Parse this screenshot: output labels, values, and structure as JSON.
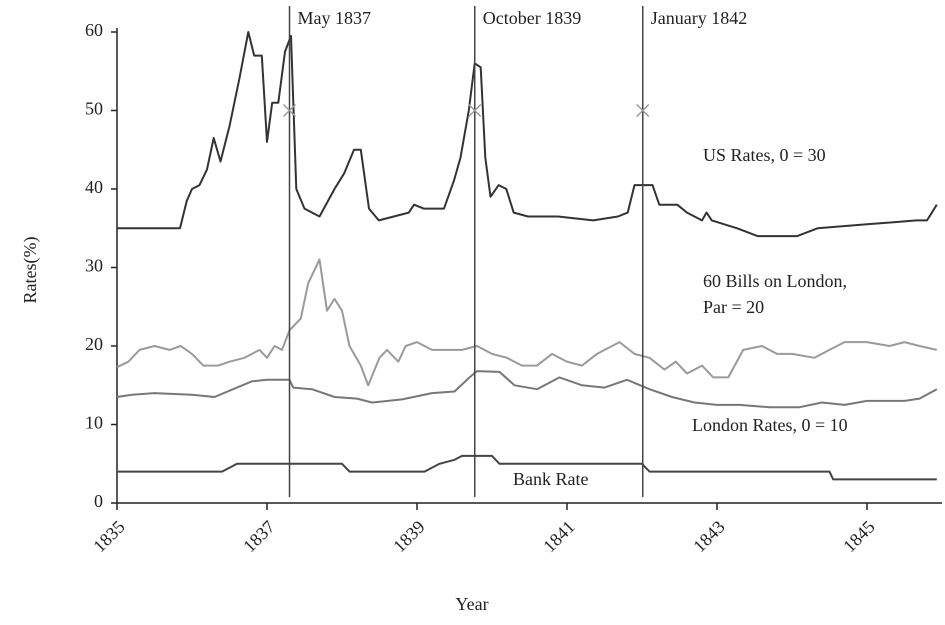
{
  "chart_data": {
    "type": "line",
    "xlabel": "Year",
    "ylabel": "Rates(%)",
    "xlim": [
      1835,
      1846
    ],
    "ylim": [
      0,
      60
    ],
    "xticks": [
      1835,
      1837,
      1839,
      1841,
      1843,
      1845
    ],
    "yticks": [
      0,
      10,
      20,
      30,
      40,
      50,
      60
    ],
    "grid": false,
    "events": [
      {
        "x": 1837.3,
        "label": "May 1837",
        "marker": 50
      },
      {
        "x": 1839.77,
        "label": "October 1839",
        "marker": 50
      },
      {
        "x": 1842.01,
        "label": "January 1842",
        "marker": 50
      }
    ],
    "series": [
      {
        "name": "US Rates, 0 = 30",
        "color": "#333333",
        "x": [
          1835,
          1835.84,
          1835.93,
          1836.0,
          1836.1,
          1836.2,
          1836.29,
          1836.38,
          1836.5,
          1836.63,
          1836.75,
          1836.83,
          1836.93,
          1837.0,
          1837.07,
          1837.15,
          1837.24,
          1837.32,
          1837.39,
          1837.5,
          1837.7,
          1837.9,
          1838.03,
          1838.16,
          1838.25,
          1838.36,
          1838.49,
          1838.69,
          1838.89,
          1838.96,
          1839.09,
          1839.36,
          1839.49,
          1839.58,
          1839.69,
          1839.77,
          1839.85,
          1839.91,
          1839.98,
          1840.09,
          1840.19,
          1840.29,
          1840.48,
          1840.88,
          1841.35,
          1841.68,
          1841.81,
          1841.9,
          1842.14,
          1842.23,
          1842.47,
          1842.6,
          1842.8,
          1842.86,
          1842.93,
          1843.27,
          1843.54,
          1844.07,
          1844.34,
          1845.0,
          1845.66,
          1845.8,
          1845.93
        ],
        "values": [
          35,
          35,
          38.5,
          40,
          40.5,
          42.5,
          46.5,
          43.5,
          48,
          54,
          60,
          57,
          57,
          46,
          51,
          51,
          57.5,
          59.5,
          40,
          37.5,
          36.5,
          40,
          42,
          45,
          45,
          37.5,
          36,
          36.5,
          37,
          38,
          37.5,
          37.5,
          41,
          44,
          50,
          56,
          55.5,
          44,
          39,
          40.5,
          40,
          37,
          36.5,
          36.5,
          36,
          36.5,
          37,
          40.5,
          40.5,
          38,
          38,
          37,
          36,
          37,
          36,
          35,
          34,
          34,
          35,
          35.5,
          36,
          36,
          38
        ]
      },
      {
        "name": "60 Bills on London, Par = 20",
        "color": "#9a9a9a",
        "x": [
          1835,
          1835.15,
          1835.3,
          1835.5,
          1835.7,
          1835.85,
          1836.0,
          1836.15,
          1836.35,
          1836.5,
          1836.7,
          1836.9,
          1837.0,
          1837.1,
          1837.2,
          1837.3,
          1837.45,
          1837.55,
          1837.7,
          1837.8,
          1837.9,
          1838.0,
          1838.1,
          1838.25,
          1838.35,
          1838.5,
          1838.6,
          1838.75,
          1838.85,
          1839.0,
          1839.2,
          1839.4,
          1839.6,
          1839.8,
          1840.0,
          1840.2,
          1840.4,
          1840.6,
          1840.8,
          1841.0,
          1841.2,
          1841.4,
          1841.7,
          1841.9,
          1842.1,
          1842.3,
          1842.45,
          1842.6,
          1842.8,
          1842.95,
          1843.15,
          1843.35,
          1843.6,
          1843.8,
          1844.0,
          1844.3,
          1844.5,
          1844.7,
          1845.0,
          1845.3,
          1845.5,
          1845.7,
          1845.93
        ],
        "values": [
          17.3,
          18,
          19.5,
          20,
          19.5,
          20,
          19,
          17.5,
          17.5,
          18,
          18.5,
          19.5,
          18.5,
          20,
          19.5,
          22,
          23.5,
          28,
          31,
          24.5,
          26,
          24.5,
          20,
          17.5,
          15,
          18.5,
          19.5,
          18,
          20,
          20.5,
          19.5,
          19.5,
          19.5,
          20,
          19,
          18.5,
          17.5,
          17.5,
          19,
          18,
          17.5,
          19,
          20.5,
          19,
          18.5,
          17,
          18,
          16.5,
          17.5,
          16,
          16,
          19.5,
          20,
          19,
          19,
          18.5,
          19.5,
          20.5,
          20.5,
          20,
          20.5,
          20,
          19.5
        ]
      },
      {
        "name": "London Rates, 0 = 10",
        "color": "#777777",
        "x": [
          1835,
          1835.2,
          1835.5,
          1836.0,
          1836.3,
          1836.5,
          1836.8,
          1837.0,
          1837.3,
          1837.35,
          1837.6,
          1837.9,
          1838.2,
          1838.4,
          1838.8,
          1839.2,
          1839.5,
          1839.7,
          1839.8,
          1840.1,
          1840.3,
          1840.6,
          1840.9,
          1841.2,
          1841.5,
          1841.8,
          1842.1,
          1842.4,
          1842.7,
          1843.0,
          1843.3,
          1843.7,
          1844.1,
          1844.4,
          1844.7,
          1845.0,
          1845.5,
          1845.7,
          1845.93
        ],
        "values": [
          13.5,
          13.8,
          14,
          13.8,
          13.5,
          14.3,
          15.5,
          15.7,
          15.7,
          14.7,
          14.5,
          13.5,
          13.3,
          12.8,
          13.2,
          14,
          14.2,
          16,
          16.8,
          16.7,
          15,
          14.5,
          16,
          15,
          14.7,
          15.7,
          14.5,
          13.5,
          12.8,
          12.5,
          12.5,
          12.2,
          12.2,
          12.8,
          12.5,
          13,
          13,
          13.3,
          14.5
        ]
      },
      {
        "name": "Bank Rate",
        "color": "#444444",
        "x": [
          1835,
          1836.4,
          1836.5,
          1836.6,
          1838.0,
          1838.1,
          1839.1,
          1839.3,
          1839.5,
          1839.6,
          1840.0,
          1840.1,
          1842.0,
          1842.1,
          1844.5,
          1844.55,
          1845.93
        ],
        "values": [
          4,
          4,
          4.5,
          5,
          5,
          4,
          4,
          5,
          5.5,
          6,
          6,
          5,
          5,
          4,
          4,
          3,
          3
        ]
      }
    ]
  }
}
